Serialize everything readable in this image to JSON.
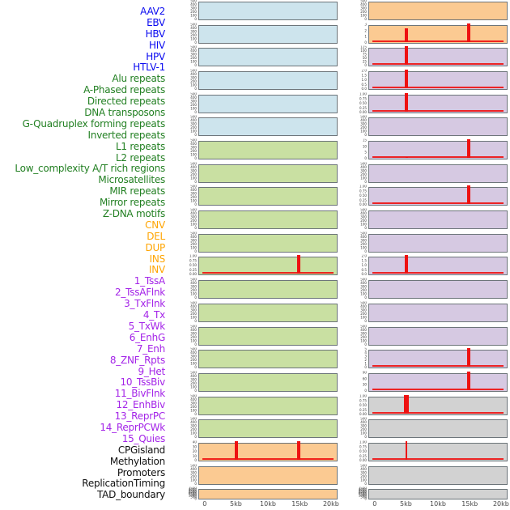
{
  "chart_data": {
    "type": "bar",
    "title": "",
    "layout_note": "44 mini-panels in 2 columns x 22 rows (column-major), shared x axis 0-20kb; red bars mark feature density spikes at 5kb and 15kb",
    "x_axis": {
      "ticks": [
        "0",
        "5kb",
        "10kb",
        "15kb",
        "20kb"
      ],
      "range_kb": [
        0,
        20
      ]
    },
    "spike_color": "#ee1111",
    "label_groups": {
      "virus": "#0a0af0",
      "repeat": "#238023",
      "sv": "#ffa502",
      "chromatin": "#a424e8",
      "other": "#111111"
    },
    "panel_colors": {
      "blue": "#cde4ed",
      "green": "#c9e0a2",
      "orange": "#fbca92",
      "purple": "#d6c9e2",
      "gray": "#d2d2d2"
    },
    "row_labels": [
      {
        "text": "AAV2",
        "group": "virus"
      },
      {
        "text": "EBV",
        "group": "virus"
      },
      {
        "text": "HBV",
        "group": "virus"
      },
      {
        "text": "HIV",
        "group": "virus"
      },
      {
        "text": "HPV",
        "group": "virus"
      },
      {
        "text": "HTLV-1",
        "group": "virus"
      },
      {
        "text": "Alu repeats",
        "group": "repeat"
      },
      {
        "text": "A-Phased repeats",
        "group": "repeat"
      },
      {
        "text": "Directed repeats",
        "group": "repeat"
      },
      {
        "text": "DNA transposons",
        "group": "repeat"
      },
      {
        "text": "G-Quadruplex forming repeats",
        "group": "repeat"
      },
      {
        "text": "Inverted repeats",
        "group": "repeat"
      },
      {
        "text": "L1 repeats",
        "group": "repeat"
      },
      {
        "text": "L2 repeats",
        "group": "repeat"
      },
      {
        "text": "Low_complexity A/T rich regions",
        "group": "repeat"
      },
      {
        "text": "Microsatellites",
        "group": "repeat"
      },
      {
        "text": "MIR repeats",
        "group": "repeat"
      },
      {
        "text": "Mirror repeats",
        "group": "repeat"
      },
      {
        "text": "Z-DNA motifs",
        "group": "repeat"
      },
      {
        "text": "CNV",
        "group": "sv"
      },
      {
        "text": "DEL",
        "group": "sv"
      },
      {
        "text": "DUP",
        "group": "sv"
      },
      {
        "text": "INS",
        "group": "sv"
      },
      {
        "text": "INV",
        "group": "sv"
      },
      {
        "text": "1_TssA",
        "group": "chromatin"
      },
      {
        "text": "2_TssAFlnk",
        "group": "chromatin"
      },
      {
        "text": "3_TxFlnk",
        "group": "chromatin"
      },
      {
        "text": "4_Tx",
        "group": "chromatin"
      },
      {
        "text": "5_TxWk",
        "group": "chromatin"
      },
      {
        "text": "6_EnhG",
        "group": "chromatin"
      },
      {
        "text": "7_Enh",
        "group": "chromatin"
      },
      {
        "text": "8_ZNF_Rpts",
        "group": "chromatin"
      },
      {
        "text": "9_Het",
        "group": "chromatin"
      },
      {
        "text": "10_TssBiv",
        "group": "chromatin"
      },
      {
        "text": "11_BivFlnk",
        "group": "chromatin"
      },
      {
        "text": "12_EnhBiv",
        "group": "chromatin"
      },
      {
        "text": "13_ReprPC",
        "group": "chromatin"
      },
      {
        "text": "14_ReprPCWk",
        "group": "chromatin"
      },
      {
        "text": "15_Quies",
        "group": "chromatin"
      },
      {
        "text": "CPGisland",
        "group": "other"
      },
      {
        "text": "Methylation",
        "group": "other"
      },
      {
        "text": "Promoters",
        "group": "other"
      },
      {
        "text": "ReplicationTiming",
        "group": "other"
      },
      {
        "text": "TAD_boundary",
        "group": "other"
      }
    ],
    "columns": {
      "left": [
        {
          "color": "blue",
          "yticks": [
            "500",
            "400",
            "300",
            "200",
            "100",
            "0"
          ],
          "spikes": [],
          "baseline": false
        },
        {
          "color": "blue",
          "yticks": [
            "500",
            "400",
            "300",
            "200",
            "100",
            "0"
          ],
          "spikes": [],
          "baseline": false
        },
        {
          "color": "blue",
          "yticks": [
            "500",
            "400",
            "300",
            "200",
            "100",
            "0"
          ],
          "spikes": [],
          "baseline": false
        },
        {
          "color": "blue",
          "yticks": [
            "500",
            "400",
            "300",
            "200",
            "100",
            "0"
          ],
          "spikes": [],
          "baseline": false
        },
        {
          "color": "blue",
          "yticks": [
            "500",
            "400",
            "300",
            "200",
            "100",
            "0"
          ],
          "spikes": [],
          "baseline": false
        },
        {
          "color": "blue",
          "yticks": [
            "500",
            "400",
            "300",
            "200",
            "100",
            "0"
          ],
          "spikes": [],
          "baseline": false
        },
        {
          "color": "green",
          "yticks": [
            "500",
            "400",
            "300",
            "200",
            "100",
            "0"
          ],
          "spikes": [],
          "baseline": false
        },
        {
          "color": "green",
          "yticks": [
            "500",
            "400",
            "300",
            "200",
            "100",
            "0"
          ],
          "spikes": [],
          "baseline": false
        },
        {
          "color": "green",
          "yticks": [
            "500",
            "400",
            "300",
            "200",
            "100",
            "0"
          ],
          "spikes": [],
          "baseline": false
        },
        {
          "color": "green",
          "yticks": [
            "500",
            "400",
            "300",
            "200",
            "100",
            "0"
          ],
          "spikes": [],
          "baseline": false
        },
        {
          "color": "green",
          "yticks": [
            "500",
            "400",
            "300",
            "200",
            "100",
            "0"
          ],
          "spikes": [],
          "baseline": false
        },
        {
          "color": "green",
          "yticks": [
            "1.00",
            "0.75",
            "0.50",
            "0.25",
            "0.00"
          ],
          "spikes": [
            {
              "kb": 15,
              "h": 1.0,
              "w": 4
            }
          ],
          "baseline": true
        },
        {
          "color": "green",
          "yticks": [
            "500",
            "400",
            "300",
            "200",
            "100",
            "0"
          ],
          "spikes": [],
          "baseline": false
        },
        {
          "color": "green",
          "yticks": [
            "500",
            "400",
            "300",
            "200",
            "100",
            "0"
          ],
          "spikes": [],
          "baseline": false
        },
        {
          "color": "green",
          "yticks": [
            "500",
            "400",
            "300",
            "200",
            "100",
            "0"
          ],
          "spikes": [],
          "baseline": false
        },
        {
          "color": "green",
          "yticks": [
            "500",
            "400",
            "300",
            "200",
            "100",
            "0"
          ],
          "spikes": [],
          "baseline": false
        },
        {
          "color": "green",
          "yticks": [
            "500",
            "400",
            "300",
            "200",
            "100",
            "0"
          ],
          "spikes": [],
          "baseline": false
        },
        {
          "color": "green",
          "yticks": [
            "500",
            "400",
            "300",
            "200",
            "100",
            "0"
          ],
          "spikes": [],
          "baseline": false
        },
        {
          "color": "green",
          "yticks": [
            "500",
            "400",
            "300",
            "200",
            "100",
            "0"
          ],
          "spikes": [],
          "baseline": false
        },
        {
          "color": "orange",
          "yticks": [
            "40",
            "30",
            "20",
            "10",
            "0"
          ],
          "spikes": [
            {
              "kb": 5,
              "h": 1.0,
              "w": 4
            },
            {
              "kb": 15,
              "h": 1.0,
              "w": 4
            }
          ],
          "baseline": true
        },
        {
          "color": "orange",
          "yticks": [
            "500",
            "400",
            "300",
            "200",
            "100",
            "0"
          ],
          "spikes": [],
          "baseline": false
        },
        {
          "color": "orange",
          "yticks": [
            "3500",
            "3000",
            "2500",
            "2000",
            "1500",
            "1000",
            "500",
            "0"
          ],
          "spikes": [],
          "baseline": false
        }
      ],
      "right": [
        {
          "color": "orange",
          "yticks": [
            "500",
            "400",
            "300",
            "200",
            "100",
            "0"
          ],
          "spikes": [],
          "baseline": false
        },
        {
          "color": "orange",
          "yticks": [
            "3",
            "2",
            "1",
            "0"
          ],
          "spikes": [
            {
              "kb": 5,
              "h": 0.8,
              "w": 4
            },
            {
              "kb": 15,
              "h": 1.0,
              "w": 4
            }
          ],
          "baseline": true
        },
        {
          "color": "purple",
          "yticks": [
            "125",
            "100",
            "75",
            "50",
            "25",
            "0"
          ],
          "spikes": [
            {
              "kb": 5,
              "h": 1.0,
              "w": 4
            }
          ],
          "baseline": true
        },
        {
          "color": "purple",
          "yticks": [
            "2.0",
            "1.5",
            "1.0",
            "0.5",
            "0.0"
          ],
          "spikes": [
            {
              "kb": 5,
              "h": 1.0,
              "w": 4
            }
          ],
          "baseline": true
        },
        {
          "color": "purple",
          "yticks": [
            "1.00",
            "0.75",
            "0.50",
            "0.25",
            "0.00"
          ],
          "spikes": [
            {
              "kb": 5,
              "h": 1.0,
              "w": 4
            }
          ],
          "baseline": true
        },
        {
          "color": "purple",
          "yticks": [
            "500",
            "400",
            "300",
            "200",
            "100",
            "0"
          ],
          "spikes": [],
          "baseline": false
        },
        {
          "color": "purple",
          "yticks": [
            "15",
            "10",
            "5",
            "0"
          ],
          "spikes": [
            {
              "kb": 5,
              "h": 0.07,
              "w": 3
            },
            {
              "kb": 15,
              "h": 1.0,
              "w": 4
            }
          ],
          "baseline": true
        },
        {
          "color": "purple",
          "yticks": [
            "500",
            "400",
            "300",
            "200",
            "100",
            "0"
          ],
          "spikes": [],
          "baseline": false
        },
        {
          "color": "purple",
          "yticks": [
            "1.00",
            "0.75",
            "0.50",
            "0.25",
            "0.00"
          ],
          "spikes": [
            {
              "kb": 15,
              "h": 1.0,
              "w": 4
            }
          ],
          "baseline": true
        },
        {
          "color": "purple",
          "yticks": [
            "500",
            "400",
            "300",
            "200",
            "100",
            "0"
          ],
          "spikes": [],
          "baseline": false
        },
        {
          "color": "purple",
          "yticks": [
            "500",
            "400",
            "300",
            "200",
            "100",
            "0"
          ],
          "spikes": [],
          "baseline": false
        },
        {
          "color": "purple",
          "yticks": [
            "2.0",
            "1.5",
            "1.0",
            "0.5",
            "0.0"
          ],
          "spikes": [
            {
              "kb": 5,
              "h": 1.0,
              "w": 4
            }
          ],
          "baseline": true
        },
        {
          "color": "purple",
          "yticks": [
            "500",
            "400",
            "300",
            "200",
            "100",
            "0"
          ],
          "spikes": [],
          "baseline": false
        },
        {
          "color": "purple",
          "yticks": [
            "500",
            "400",
            "300",
            "200",
            "100",
            "0"
          ],
          "spikes": [],
          "baseline": false
        },
        {
          "color": "purple",
          "yticks": [
            "500",
            "400",
            "300",
            "200",
            "100",
            "0"
          ],
          "spikes": [],
          "baseline": false
        },
        {
          "color": "purple",
          "yticks": [
            "5",
            "4",
            "3",
            "2",
            "1",
            "0"
          ],
          "spikes": [
            {
              "kb": 15,
              "h": 1.0,
              "w": 4
            }
          ],
          "baseline": true
        },
        {
          "color": "purple",
          "yticks": [
            "90",
            "60",
            "30",
            "0"
          ],
          "spikes": [
            {
              "kb": 15,
              "h": 1.0,
              "w": 4
            }
          ],
          "baseline": true
        },
        {
          "color": "gray",
          "yticks": [
            "1.00",
            "0.75",
            "0.50",
            "0.25",
            "0.00"
          ],
          "spikes": [
            {
              "kb": 5,
              "h": 1.0,
              "w": 6
            }
          ],
          "baseline": true
        },
        {
          "color": "gray",
          "yticks": [
            "500",
            "400",
            "300",
            "200",
            "100",
            "0"
          ],
          "spikes": [],
          "baseline": false
        },
        {
          "color": "gray",
          "yticks": [
            "1.00",
            "0.75",
            "0.50",
            "0.25",
            "0.00"
          ],
          "spikes": [
            {
              "kb": 5,
              "h": 1.0,
              "w": 2
            }
          ],
          "baseline": true
        },
        {
          "color": "gray",
          "yticks": [
            "500",
            "400",
            "300",
            "200",
            "100",
            "0"
          ],
          "spikes": [],
          "baseline": false
        },
        {
          "color": "gray",
          "yticks": [
            "3500",
            "3000",
            "2500",
            "2000",
            "1500",
            "1000",
            "500",
            "0"
          ],
          "spikes": [],
          "baseline": false
        }
      ]
    }
  }
}
